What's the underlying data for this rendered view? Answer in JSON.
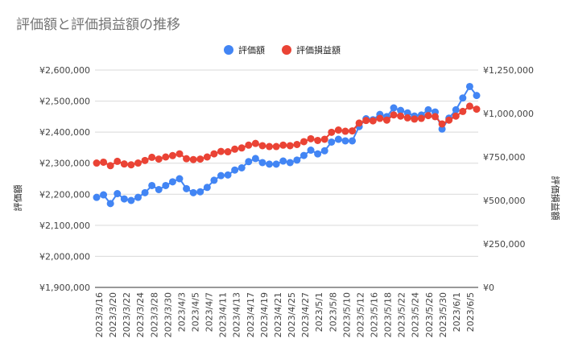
{
  "chart_data": {
    "type": "line",
    "title": "評価額と評価損益額の推移",
    "grid": true,
    "legend_position": "top",
    "x_tick_labels": [
      "2023/3/16",
      "2023/3/20",
      "2023/3/22",
      "2023/3/24",
      "2023/3/28",
      "2023/3/30",
      "2023/4/3",
      "2023/4/5",
      "2023/4/7",
      "2023/4/11",
      "2023/4/13",
      "2023/4/17",
      "2023/4/19",
      "2023/4/21",
      "2023/4/25",
      "2023/4/27",
      "2023/5/1",
      "2023/5/8",
      "2023/5/10",
      "2023/5/12",
      "2023/5/16",
      "2023/5/18",
      "2023/5/22",
      "2023/5/24",
      "2023/5/26",
      "2023/5/30",
      "2023/6/1",
      "2023/6/5"
    ],
    "series": [
      {
        "name": "評価額",
        "color": "#4285f4",
        "axis": "left",
        "values": [
          2190000,
          2198000,
          2170000,
          2202000,
          2185000,
          2180000,
          2190000,
          2205000,
          2228000,
          2215000,
          2228000,
          2240000,
          2250000,
          2218000,
          2205000,
          2208000,
          2222000,
          2245000,
          2260000,
          2262000,
          2278000,
          2285000,
          2305000,
          2315000,
          2302000,
          2297000,
          2297000,
          2307000,
          2302000,
          2310000,
          2325000,
          2342000,
          2330000,
          2340000,
          2368000,
          2377000,
          2372000,
          2372000,
          2418000,
          2443000,
          2440000,
          2457000,
          2450000,
          2478000,
          2470000,
          2462000,
          2452000,
          2455000,
          2472000,
          2465000,
          2410000,
          2445000,
          2472000,
          2510000,
          2547000,
          2518000
        ]
      },
      {
        "name": "評価損益額",
        "color": "#ea4335",
        "axis": "right",
        "values": [
          715000,
          720000,
          700000,
          725000,
          710000,
          705000,
          715000,
          730000,
          748000,
          738000,
          750000,
          758000,
          768000,
          740000,
          735000,
          738000,
          750000,
          768000,
          782000,
          780000,
          795000,
          802000,
          818000,
          828000,
          815000,
          810000,
          810000,
          818000,
          815000,
          822000,
          838000,
          855000,
          845000,
          852000,
          892000,
          905000,
          898000,
          900000,
          945000,
          960000,
          958000,
          972000,
          962000,
          992000,
          985000,
          975000,
          968000,
          972000,
          988000,
          982000,
          940000,
          962000,
          985000,
          1012000,
          1042000,
          1025000
        ]
      }
    ],
    "left_axis": {
      "title": "評価額",
      "min": 1900000,
      "max": 2600000,
      "ticks": [
        "¥1,900,000",
        "¥2,000,000",
        "¥2,100,000",
        "¥2,200,000",
        "¥2,300,000",
        "¥2,400,000",
        "¥2,500,000",
        "¥2,600,000"
      ]
    },
    "right_axis": {
      "title": "評価損益額",
      "min": 0,
      "max": 1250000,
      "ticks": [
        "¥0",
        "¥250,000",
        "¥500,000",
        "¥750,000",
        "¥1,000,000",
        "¥1,250,000"
      ]
    }
  }
}
